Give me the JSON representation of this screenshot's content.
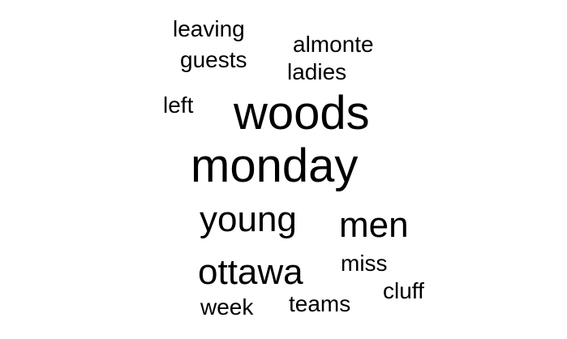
{
  "word_cloud": {
    "words": [
      {
        "id": "leaving",
        "text": "leaving"
      },
      {
        "id": "almonte",
        "text": "almonte"
      },
      {
        "id": "guests",
        "text": "guests"
      },
      {
        "id": "ladies",
        "text": "ladies"
      },
      {
        "id": "left",
        "text": "left"
      },
      {
        "id": "woods",
        "text": "woods"
      },
      {
        "id": "monday",
        "text": "monday"
      },
      {
        "id": "young",
        "text": "young"
      },
      {
        "id": "men",
        "text": "men"
      },
      {
        "id": "miss",
        "text": "miss"
      },
      {
        "id": "ottawa",
        "text": "ottawa"
      },
      {
        "id": "cluff",
        "text": "cluff"
      },
      {
        "id": "week",
        "text": "week"
      },
      {
        "id": "teams",
        "text": "teams"
      }
    ],
    "text_color": "#000000",
    "background_color": "#ffffff"
  }
}
